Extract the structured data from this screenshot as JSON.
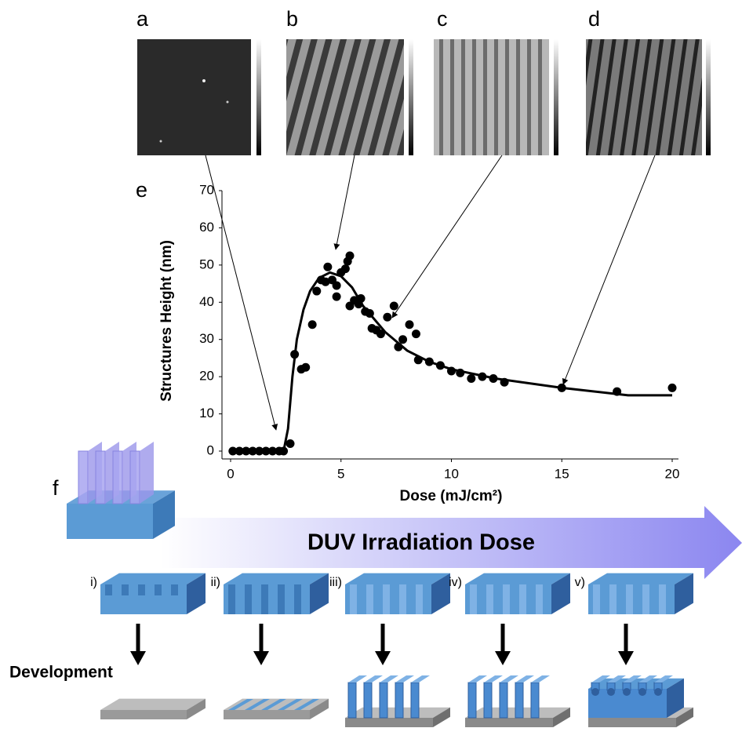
{
  "panel_labels": [
    "a",
    "b",
    "c",
    "d",
    "e",
    "f"
  ],
  "chart_data": {
    "type": "scatter",
    "x_label": "Dose (mJ/cm²)",
    "y_label": "Structures Height (nm)",
    "xlim": [
      0,
      20
    ],
    "ylim": [
      0,
      70
    ],
    "xticks": [
      0,
      5,
      10,
      15,
      20
    ],
    "yticks": [
      0,
      10,
      20,
      30,
      40,
      50,
      60,
      70
    ],
    "series": [
      {
        "type": "scatter",
        "color": "#000000",
        "x": [
          0.1,
          0.4,
          0.7,
          1.0,
          1.3,
          1.6,
          1.9,
          2.2,
          2.4,
          2.7,
          2.9,
          3.2,
          3.4,
          3.7,
          3.9,
          4.1,
          4.4,
          4.3,
          4.6,
          4.8,
          4.8,
          5.0,
          5.2,
          5.3,
          5.4,
          5.4,
          5.6,
          5.8,
          5.9,
          6.1,
          6.3,
          6.4,
          6.6,
          6.8,
          7.1,
          7.4,
          7.6,
          7.8,
          8.1,
          8.4,
          8.5,
          9.0,
          9.5,
          10.0,
          10.4,
          10.9,
          11.4,
          11.9,
          12.4,
          15.0,
          17.5,
          20.0
        ],
        "values": [
          0,
          0,
          0,
          0,
          0,
          0,
          0,
          0,
          0,
          2,
          26,
          22,
          22.5,
          34,
          43,
          46,
          49.5,
          45.5,
          46,
          41.5,
          44.5,
          48,
          49,
          51,
          52.5,
          39,
          40.5,
          39.5,
          41,
          37.5,
          37,
          33,
          32.5,
          31.5,
          36,
          39,
          28,
          30,
          34,
          31.5,
          24.5,
          24,
          23,
          21.5,
          21,
          19.5,
          20,
          19.5,
          18.5,
          17,
          16,
          17
        ]
      },
      {
        "type": "line",
        "color": "#000000",
        "x": [
          0,
          2.4,
          2.6,
          2.8,
          3.0,
          3.3,
          3.6,
          4.0,
          4.5,
          5.0,
          5.5,
          6.0,
          7.0,
          8.0,
          9.0,
          10.0,
          12.0,
          15.0,
          18.0,
          20.0
        ],
        "values": [
          0,
          0,
          6,
          20,
          30,
          38,
          43,
          46.5,
          48,
          47,
          44,
          39,
          32,
          27,
          24,
          22,
          19.5,
          17,
          15,
          15
        ]
      }
    ]
  },
  "diagram": {
    "arrow_label": "DUV Irradiation Dose",
    "development_label": "Development",
    "steps": [
      "i)",
      "ii)",
      "iii)",
      "iv)",
      "v)"
    ]
  }
}
